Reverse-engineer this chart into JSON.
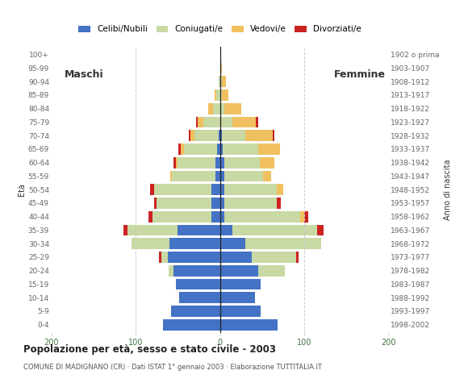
{
  "age_groups": [
    "0-4",
    "5-9",
    "10-14",
    "15-19",
    "20-24",
    "25-29",
    "30-34",
    "35-39",
    "40-44",
    "45-49",
    "50-54",
    "55-59",
    "60-64",
    "65-69",
    "70-74",
    "75-79",
    "80-84",
    "85-89",
    "90-94",
    "95-99",
    "100+"
  ],
  "birth_years": [
    "1998-2002",
    "1993-1997",
    "1988-1992",
    "1983-1987",
    "1978-1982",
    "1973-1977",
    "1968-1972",
    "1963-1967",
    "1958-1962",
    "1953-1957",
    "1948-1952",
    "1943-1947",
    "1938-1942",
    "1933-1937",
    "1928-1932",
    "1923-1927",
    "1918-1922",
    "1913-1917",
    "1908-1912",
    "1903-1907",
    "1902 o prima"
  ],
  "males": {
    "celibi": [
      68,
      58,
      48,
      52,
      55,
      62,
      60,
      50,
      10,
      10,
      10,
      5,
      5,
      3,
      2,
      0,
      0,
      0,
      0,
      0,
      0
    ],
    "coniugati": [
      0,
      0,
      0,
      0,
      6,
      8,
      45,
      60,
      70,
      65,
      68,
      52,
      45,
      40,
      28,
      20,
      8,
      4,
      2,
      0,
      0
    ],
    "vedovi": [
      0,
      0,
      0,
      0,
      0,
      0,
      0,
      0,
      0,
      0,
      0,
      2,
      2,
      4,
      5,
      6,
      6,
      2,
      0,
      0,
      0
    ],
    "divorziati": [
      0,
      0,
      0,
      0,
      0,
      2,
      0,
      5,
      5,
      3,
      5,
      0,
      3,
      2,
      2,
      2,
      0,
      0,
      0,
      0,
      0
    ]
  },
  "females": {
    "nubili": [
      68,
      48,
      42,
      48,
      45,
      38,
      30,
      15,
      5,
      5,
      5,
      5,
      5,
      3,
      2,
      0,
      0,
      0,
      0,
      0,
      0
    ],
    "coniugate": [
      0,
      0,
      0,
      0,
      32,
      52,
      90,
      100,
      90,
      62,
      62,
      46,
      42,
      42,
      28,
      15,
      5,
      2,
      2,
      0,
      0
    ],
    "vedove": [
      0,
      0,
      0,
      0,
      0,
      0,
      0,
      0,
      5,
      0,
      8,
      10,
      18,
      26,
      33,
      28,
      20,
      8,
      5,
      2,
      0
    ],
    "divorziate": [
      0,
      0,
      0,
      0,
      0,
      3,
      0,
      8,
      5,
      5,
      0,
      0,
      0,
      0,
      2,
      2,
      0,
      0,
      0,
      0,
      0
    ]
  },
  "colors": {
    "celibi": "#4472c4",
    "coniugati": "#c8d9a3",
    "vedovi": "#f0c060",
    "divorziati": "#cc2222"
  },
  "title": "Popolazione per età, sesso e stato civile - 2003",
  "subtitle": "COMUNE DI MADIGNANO (CR) · Dati ISTAT 1° gennaio 2003 · Elaborazione TUTTITALIA.IT",
  "xlabel_left": "Maschi",
  "xlabel_right": "Femmine",
  "ylabel_left": "Età",
  "ylabel_right": "Anno di nascita",
  "xlim": 200,
  "legend_labels": [
    "Celibi/Nubili",
    "Coniugati/e",
    "Vedovi/e",
    "Divorziati/e"
  ],
  "background_color": "#ffffff",
  "grid_color": "#cccccc"
}
